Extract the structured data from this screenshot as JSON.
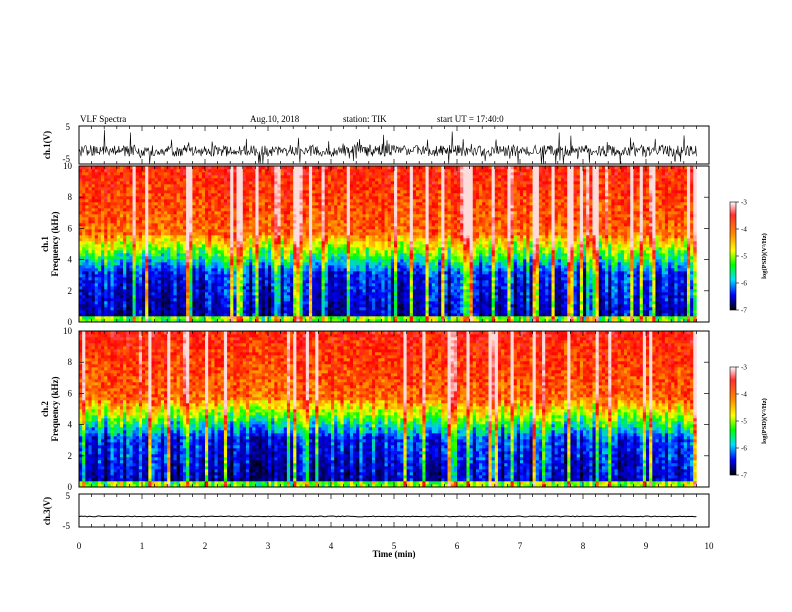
{
  "header": {
    "title": "VLF Spectra",
    "date": "Aug.10, 2018",
    "station": "station: TIK",
    "start": "start UT = 17:40:0"
  },
  "colorbar": {
    "label": "log(PSD)(V²/Hz)",
    "ticks": [
      "-3",
      "-4",
      "-5",
      "-6",
      "-7"
    ],
    "colors": [
      "#ffffff",
      "#ff0000",
      "#ffff00",
      "#00ff00",
      "#00ffff",
      "#0000ff",
      "#000000"
    ]
  },
  "chart_data": [
    {
      "type": "line",
      "panel": "ch.1 waveform",
      "ylabel": "ch.1(V)",
      "y_ticks": [
        "5",
        "-5"
      ],
      "ylim": [
        -5,
        5
      ],
      "xlim": [
        0,
        10
      ],
      "x_unit": "min",
      "description_values": {
        "baseline": -1.5,
        "noise_amplitude": 1.5
      }
    },
    {
      "type": "heatmap",
      "panel": "ch.1 spectrogram",
      "ylabel": "ch.1 Frequency (kHz)",
      "y_ticks": [
        "0",
        "2",
        "4",
        "6",
        "8",
        "10"
      ],
      "ylim": [
        0,
        10
      ],
      "xlim": [
        0,
        9.8
      ],
      "colorscale": {
        "min": -7,
        "max": -3
      }
    },
    {
      "type": "heatmap",
      "panel": "ch.2 spectrogram",
      "ylabel": "ch.2 Frequency (kHz)",
      "y_ticks": [
        "0",
        "2",
        "4",
        "6",
        "8",
        "10"
      ],
      "ylim": [
        0,
        10
      ],
      "xlim": [
        0,
        9.8
      ],
      "colorscale": {
        "min": -7,
        "max": -3
      }
    },
    {
      "type": "line",
      "panel": "ch.3 waveform",
      "ylabel": "ch.3(V)",
      "y_ticks": [
        "5",
        "-5"
      ],
      "ylim": [
        -5,
        5
      ],
      "xlim": [
        0,
        10
      ],
      "description_values": {
        "baseline": -1.8
      },
      "xlabel": "Time (min)",
      "x_ticks": [
        "0",
        "1",
        "2",
        "3",
        "4",
        "5",
        "6",
        "7",
        "8",
        "9",
        "10"
      ]
    }
  ]
}
